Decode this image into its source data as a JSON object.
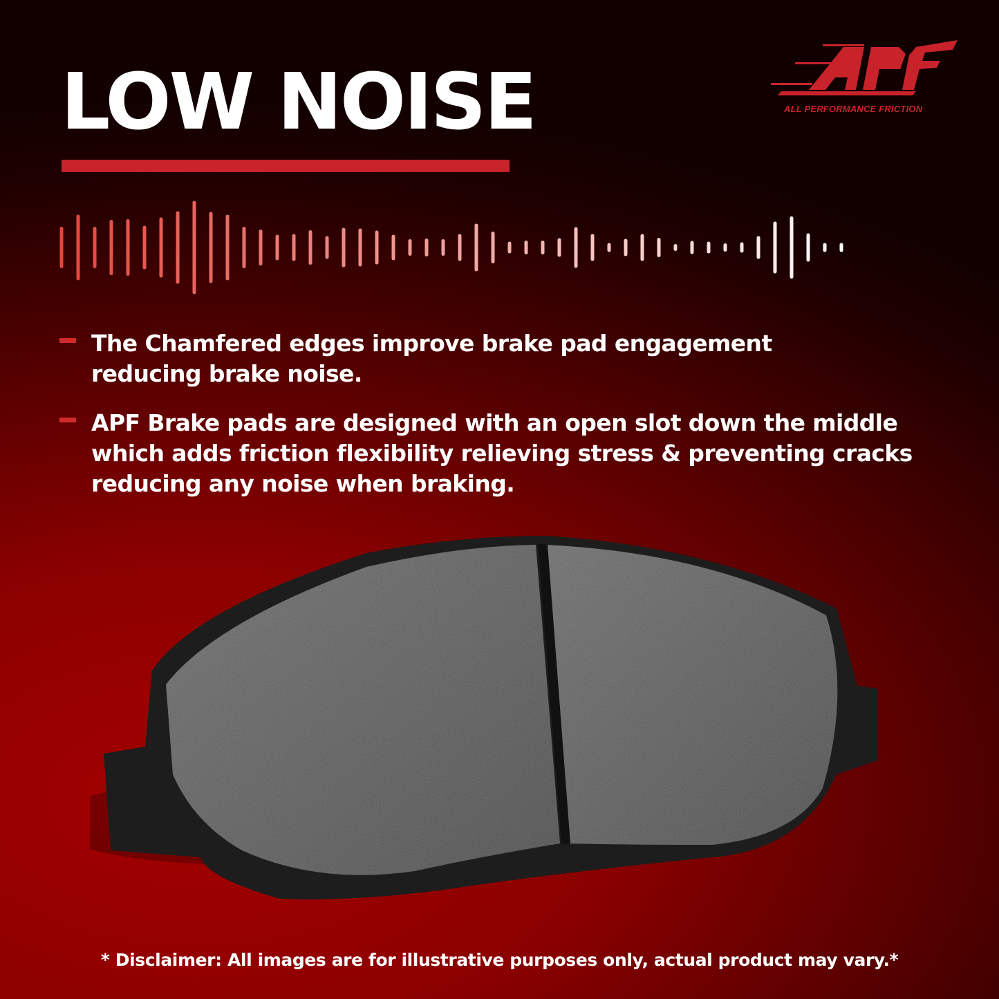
{
  "header": {
    "title": "LOW NOISE"
  },
  "logo": {
    "text": "APF",
    "tagline": "ALL PERFORMANCE FRICTION",
    "color": "#c8222a"
  },
  "features": [
    {
      "text": "The Chamfered edges improve brake pad engagement reducing brake noise."
    },
    {
      "text": "APF Brake pads are designed with an open slot down the middle which adds friction flexibility relieving stress & preventing cracks reducing any noise when braking."
    }
  ],
  "disclaimer": "* Disclaimer: All images are for illustrative purposes only, actual product may vary.*",
  "colors": {
    "accent": "#c8222a",
    "background": "#8a0000"
  }
}
